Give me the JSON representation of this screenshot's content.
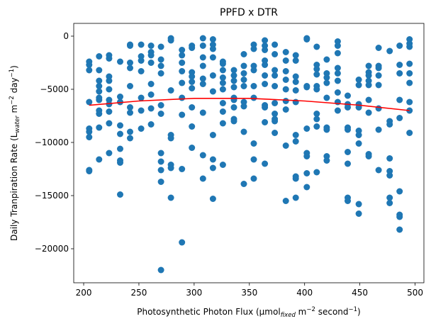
{
  "chart_data": {
    "type": "scatter",
    "title": "PPFD x DTR",
    "xlabel": {
      "main": "Photosynthetic Photon Flux (µmol",
      "sub": "fixed",
      "mid": " m",
      "sup1": "−2",
      "rest": " second",
      "sup2": "−1",
      "end": ")"
    },
    "ylabel": {
      "main": "Daily Tranpiration Rate (L",
      "sub": "water",
      "mid": " m",
      "sup1": "−2",
      "rest": " day",
      "sup2": "−1",
      "end": ")"
    },
    "xlim": [
      191,
      508
    ],
    "ylim": [
      -23200,
      1200
    ],
    "xticks": [
      200,
      250,
      300,
      350,
      400,
      450,
      500
    ],
    "yticks": [
      0,
      -5000,
      -10000,
      -15000,
      -20000
    ],
    "ytick_labels": [
      "0",
      "−5000",
      "−10000",
      "−15000",
      "−20000"
    ],
    "marker_color": "#1f77b4",
    "fit_color": "#ff0000",
    "grid": false,
    "fit_curve": {
      "x": [
        205,
        250,
        300,
        350,
        400,
        450,
        495
      ],
      "y": [
        -6500,
        -6100,
        -5850,
        -5850,
        -6100,
        -6500,
        -7000
      ]
    },
    "points": [
      [
        205,
        -2400
      ],
      [
        205,
        -2700
      ],
      [
        205,
        -3200
      ],
      [
        205,
        -6200
      ],
      [
        205,
        -8700
      ],
      [
        205,
        -9000
      ],
      [
        205,
        -9500
      ],
      [
        205,
        -12600
      ],
      [
        205,
        -12700
      ],
      [
        214,
        -1900
      ],
      [
        214,
        -3200
      ],
      [
        214,
        -4200
      ],
      [
        214,
        -4700
      ],
      [
        214,
        -5200
      ],
      [
        214,
        -5800
      ],
      [
        214,
        -6000
      ],
      [
        214,
        -7000
      ],
      [
        214,
        -7300
      ],
      [
        214,
        -8600
      ],
      [
        214,
        -11600
      ],
      [
        223,
        -1800
      ],
      [
        223,
        -2100
      ],
      [
        223,
        -3800
      ],
      [
        223,
        -4200
      ],
      [
        223,
        -5000
      ],
      [
        223,
        -6000
      ],
      [
        223,
        -6400
      ],
      [
        223,
        -7100
      ],
      [
        223,
        -8200
      ],
      [
        223,
        -11000
      ],
      [
        233,
        -2400
      ],
      [
        233,
        -5700
      ],
      [
        233,
        -6200
      ],
      [
        233,
        -8400
      ],
      [
        233,
        -9200
      ],
      [
        233,
        -10600
      ],
      [
        233,
        -11700
      ],
      [
        233,
        -11900
      ],
      [
        233,
        -14900
      ],
      [
        242,
        -800
      ],
      [
        242,
        -900
      ],
      [
        242,
        -2500
      ],
      [
        242,
        -3000
      ],
      [
        242,
        -4700
      ],
      [
        242,
        -6700
      ],
      [
        242,
        -7200
      ],
      [
        242,
        -9000
      ],
      [
        242,
        -9600
      ],
      [
        252,
        -800
      ],
      [
        252,
        -1900
      ],
      [
        252,
        -2300
      ],
      [
        252,
        -3300
      ],
      [
        252,
        -5800
      ],
      [
        252,
        -7000
      ],
      [
        252,
        -8700
      ],
      [
        261,
        -900
      ],
      [
        261,
        -1500
      ],
      [
        261,
        -1800
      ],
      [
        261,
        -2500
      ],
      [
        261,
        -4500
      ],
      [
        261,
        -5500
      ],
      [
        261,
        -6800
      ],
      [
        261,
        -8300
      ],
      [
        270,
        -1000
      ],
      [
        270,
        -2200
      ],
      [
        270,
        -2800
      ],
      [
        270,
        -3500
      ],
      [
        270,
        -6500
      ],
      [
        270,
        -7300
      ],
      [
        270,
        -11000
      ],
      [
        270,
        -11800
      ],
      [
        270,
        -12600
      ],
      [
        270,
        -13700
      ],
      [
        270,
        -22000
      ],
      [
        279,
        -200
      ],
      [
        279,
        -400
      ],
      [
        279,
        -5100
      ],
      [
        279,
        -9300
      ],
      [
        279,
        -9600
      ],
      [
        279,
        -12100
      ],
      [
        279,
        -12400
      ],
      [
        279,
        -15200
      ],
      [
        289,
        -1300
      ],
      [
        289,
        -1800
      ],
      [
        289,
        -2500
      ],
      [
        289,
        -3300
      ],
      [
        289,
        -4400
      ],
      [
        289,
        -5800
      ],
      [
        289,
        -7400
      ],
      [
        289,
        -12500
      ],
      [
        289,
        -19400
      ],
      [
        298,
        -900
      ],
      [
        298,
        -1100
      ],
      [
        298,
        -3400
      ],
      [
        298,
        -3800
      ],
      [
        298,
        -4300
      ],
      [
        298,
        -4900
      ],
      [
        298,
        -6700
      ],
      [
        298,
        -8500
      ],
      [
        298,
        -10500
      ],
      [
        308,
        -200
      ],
      [
        308,
        -900
      ],
      [
        308,
        -2000
      ],
      [
        308,
        -2800
      ],
      [
        308,
        -4000
      ],
      [
        308,
        -4500
      ],
      [
        308,
        -7200
      ],
      [
        308,
        -11200
      ],
      [
        308,
        -13400
      ],
      [
        317,
        -300
      ],
      [
        317,
        -800
      ],
      [
        317,
        -1200
      ],
      [
        317,
        -2000
      ],
      [
        317,
        -3700
      ],
      [
        317,
        -5200
      ],
      [
        317,
        -9300
      ],
      [
        317,
        -11600
      ],
      [
        317,
        -12400
      ],
      [
        317,
        -15300
      ],
      [
        326,
        -2400
      ],
      [
        326,
        -2600
      ],
      [
        326,
        -3200
      ],
      [
        326,
        -3900
      ],
      [
        326,
        -4400
      ],
      [
        326,
        -5000
      ],
      [
        326,
        -6300
      ],
      [
        326,
        -7100
      ],
      [
        326,
        -8200
      ],
      [
        326,
        -12100
      ],
      [
        336,
        -3200
      ],
      [
        336,
        -3700
      ],
      [
        336,
        -4200
      ],
      [
        336,
        -4800
      ],
      [
        336,
        -5800
      ],
      [
        336,
        -6000
      ],
      [
        336,
        -6700
      ],
      [
        336,
        -7800
      ],
      [
        336,
        -8000
      ],
      [
        345,
        -1700
      ],
      [
        345,
        -2800
      ],
      [
        345,
        -3500
      ],
      [
        345,
        -4100
      ],
      [
        345,
        -4700
      ],
      [
        345,
        -6200
      ],
      [
        345,
        -6600
      ],
      [
        345,
        -9000
      ],
      [
        345,
        -13900
      ],
      [
        354,
        -800
      ],
      [
        354,
        -1200
      ],
      [
        354,
        -2800
      ],
      [
        354,
        -3200
      ],
      [
        354,
        -4700
      ],
      [
        354,
        -5800
      ],
      [
        354,
        -10100
      ],
      [
        354,
        -11600
      ],
      [
        354,
        -13400
      ],
      [
        364,
        -400
      ],
      [
        364,
        -900
      ],
      [
        364,
        -1300
      ],
      [
        364,
        -2300
      ],
      [
        364,
        -2700
      ],
      [
        364,
        -3700
      ],
      [
        364,
        -4500
      ],
      [
        364,
        -6500
      ],
      [
        364,
        -6700
      ],
      [
        364,
        -8100
      ],
      [
        364,
        -12000
      ],
      [
        373,
        -800
      ],
      [
        373,
        -1700
      ],
      [
        373,
        -3200
      ],
      [
        373,
        -3700
      ],
      [
        373,
        -4700
      ],
      [
        373,
        -6300
      ],
      [
        373,
        -7300
      ],
      [
        373,
        -7800
      ],
      [
        373,
        -8000
      ],
      [
        373,
        -9100
      ],
      [
        383,
        -1500
      ],
      [
        383,
        -2300
      ],
      [
        383,
        -3300
      ],
      [
        383,
        -4100
      ],
      [
        383,
        -5000
      ],
      [
        383,
        -6100
      ],
      [
        383,
        -6900
      ],
      [
        383,
        -10300
      ],
      [
        383,
        -15500
      ],
      [
        392,
        -1800
      ],
      [
        392,
        -2300
      ],
      [
        392,
        -3800
      ],
      [
        392,
        -4300
      ],
      [
        392,
        -5100
      ],
      [
        392,
        -6200
      ],
      [
        392,
        -9300
      ],
      [
        392,
        -9900
      ],
      [
        392,
        -13200
      ],
      [
        392,
        -13400
      ],
      [
        392,
        -15200
      ],
      [
        402,
        -200
      ],
      [
        402,
        -300
      ],
      [
        402,
        -4700
      ],
      [
        402,
        -4800
      ],
      [
        402,
        -8700
      ],
      [
        402,
        -11000
      ],
      [
        402,
        -11300
      ],
      [
        402,
        -12900
      ],
      [
        402,
        -14200
      ],
      [
        411,
        -1000
      ],
      [
        411,
        -2700
      ],
      [
        411,
        -3100
      ],
      [
        411,
        -3600
      ],
      [
        411,
        -4700
      ],
      [
        411,
        -5000
      ],
      [
        411,
        -7300
      ],
      [
        411,
        -7800
      ],
      [
        411,
        -8500
      ],
      [
        411,
        -12800
      ],
      [
        420,
        -2200
      ],
      [
        420,
        -3500
      ],
      [
        420,
        -3900
      ],
      [
        420,
        -4400
      ],
      [
        420,
        -5800
      ],
      [
        420,
        -8600
      ],
      [
        420,
        -8800
      ],
      [
        420,
        -11300
      ],
      [
        420,
        -11700
      ],
      [
        430,
        -500
      ],
      [
        430,
        -900
      ],
      [
        430,
        -1600
      ],
      [
        430,
        -3000
      ],
      [
        430,
        -3500
      ],
      [
        430,
        -4200
      ],
      [
        430,
        -5300
      ],
      [
        430,
        -6200
      ],
      [
        430,
        -7000
      ],
      [
        439,
        -5600
      ],
      [
        439,
        -6400
      ],
      [
        439,
        -6700
      ],
      [
        439,
        -8600
      ],
      [
        439,
        -8800
      ],
      [
        439,
        -10900
      ],
      [
        439,
        -12000
      ],
      [
        439,
        -15200
      ],
      [
        439,
        -15500
      ],
      [
        449,
        -4100
      ],
      [
        449,
        -4600
      ],
      [
        449,
        -6400
      ],
      [
        449,
        -6700
      ],
      [
        449,
        -8900
      ],
      [
        449,
        -9300
      ],
      [
        449,
        -10100
      ],
      [
        449,
        -15800
      ],
      [
        449,
        -16700
      ],
      [
        458,
        -2800
      ],
      [
        458,
        -3400
      ],
      [
        458,
        -3700
      ],
      [
        458,
        -4200
      ],
      [
        458,
        -4600
      ],
      [
        458,
        -6000
      ],
      [
        458,
        -7200
      ],
      [
        458,
        -11100
      ],
      [
        458,
        -11300
      ],
      [
        467,
        -1100
      ],
      [
        467,
        -2800
      ],
      [
        467,
        -3000
      ],
      [
        467,
        -3700
      ],
      [
        467,
        -4600
      ],
      [
        467,
        -6800
      ],
      [
        467,
        -8800
      ],
      [
        467,
        -12600
      ],
      [
        477,
        -1400
      ],
      [
        477,
        -8000
      ],
      [
        477,
        -8300
      ],
      [
        477,
        -11500
      ],
      [
        477,
        -12700
      ],
      [
        477,
        -13100
      ],
      [
        477,
        -15200
      ],
      [
        477,
        -15700
      ],
      [
        486,
        -900
      ],
      [
        486,
        -2700
      ],
      [
        486,
        -3500
      ],
      [
        486,
        -6000
      ],
      [
        486,
        -7700
      ],
      [
        486,
        -14600
      ],
      [
        486,
        -16800
      ],
      [
        486,
        -17000
      ],
      [
        486,
        -18200
      ],
      [
        495,
        -300
      ],
      [
        495,
        -700
      ],
      [
        495,
        -1000
      ],
      [
        495,
        -2600
      ],
      [
        495,
        -3500
      ],
      [
        495,
        -4400
      ],
      [
        495,
        -6200
      ],
      [
        495,
        -7000
      ],
      [
        495,
        -9100
      ]
    ]
  }
}
